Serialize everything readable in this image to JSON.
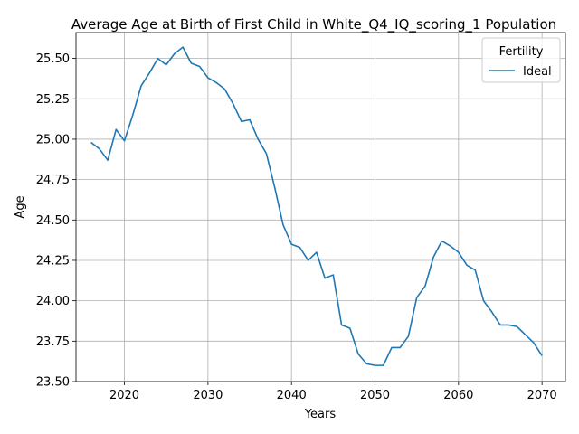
{
  "chart_data": {
    "type": "line",
    "title": "Average Age at Birth of First Child in White_Q4_IQ_scoring_1 Population",
    "xlabel": "Years",
    "ylabel": "Age",
    "xlim": [
      2014.2,
      2072.8
    ],
    "ylim": [
      23.5,
      25.66
    ],
    "xticks": [
      2020,
      2030,
      2040,
      2050,
      2060,
      2070
    ],
    "yticks": [
      23.5,
      23.75,
      24.0,
      24.25,
      24.5,
      24.75,
      25.0,
      25.25,
      25.5
    ],
    "ytick_labels": [
      "23.50",
      "23.75",
      "24.00",
      "24.25",
      "24.50",
      "24.75",
      "25.00",
      "25.25",
      "25.50"
    ],
    "grid": true,
    "legend": {
      "title": "Fertility",
      "placement": "top-right"
    },
    "series": [
      {
        "name": "Ideal",
        "color": "#1f77b4",
        "x": [
          2016,
          2017,
          2018,
          2019,
          2020,
          2021,
          2022,
          2023,
          2024,
          2025,
          2026,
          2027,
          2028,
          2029,
          2030,
          2031,
          2032,
          2033,
          2034,
          2035,
          2036,
          2037,
          2038,
          2039,
          2040,
          2041,
          2042,
          2043,
          2044,
          2045,
          2046,
          2047,
          2048,
          2049,
          2050,
          2051,
          2052,
          2053,
          2054,
          2055,
          2056,
          2057,
          2058,
          2059,
          2060,
          2061,
          2062,
          2063,
          2064,
          2065,
          2066,
          2067,
          2068,
          2069,
          2070
        ],
        "y": [
          24.98,
          24.94,
          24.87,
          25.06,
          24.99,
          25.15,
          25.33,
          25.41,
          25.5,
          25.46,
          25.53,
          25.57,
          25.47,
          25.45,
          25.38,
          25.35,
          25.31,
          25.22,
          25.11,
          25.12,
          25.0,
          24.91,
          24.7,
          24.47,
          24.35,
          24.33,
          24.25,
          24.3,
          24.14,
          24.16,
          23.85,
          23.83,
          23.67,
          23.61,
          23.6,
          23.6,
          23.71,
          23.71,
          23.78,
          24.02,
          24.09,
          24.27,
          24.37,
          24.34,
          24.3,
          24.22,
          24.19,
          24.0,
          23.93,
          23.85,
          23.85,
          23.84,
          23.79,
          23.74,
          23.66
        ]
      }
    ]
  }
}
